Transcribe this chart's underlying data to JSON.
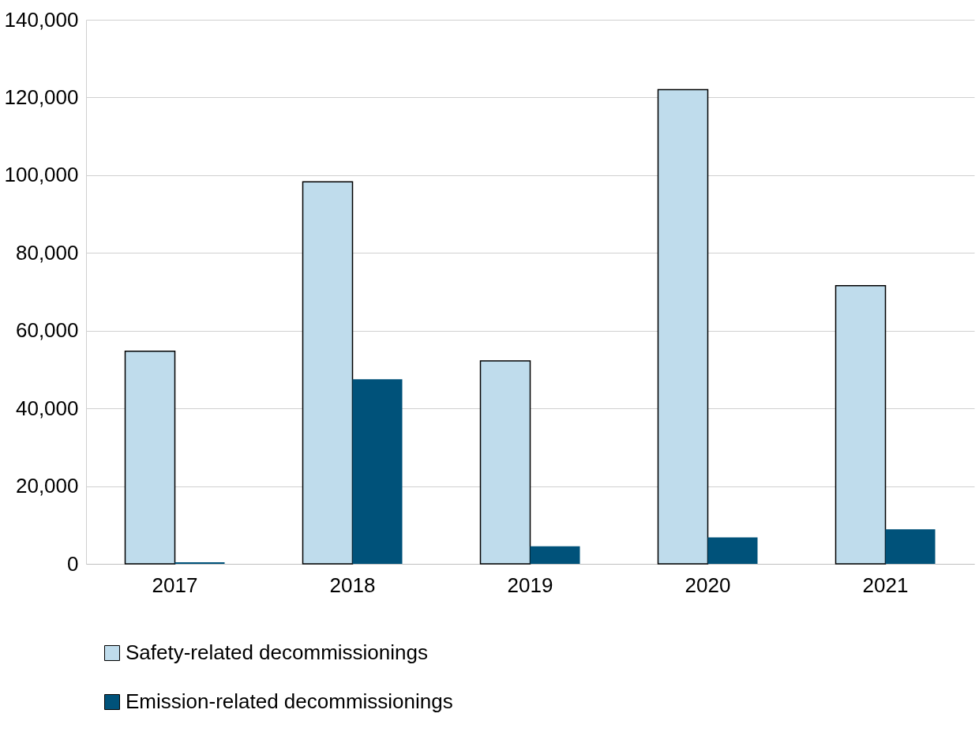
{
  "chart_data": {
    "type": "bar",
    "categories": [
      "2017",
      "2018",
      "2019",
      "2020",
      "2021"
    ],
    "series": [
      {
        "name": "Safety-related decommissionings",
        "color": "#bfdcec",
        "values": [
          54700,
          98300,
          52200,
          122000,
          71600
        ]
      },
      {
        "name": "Emission-related decommissionings",
        "color": "#00527a",
        "values": [
          400,
          47500,
          4500,
          6800,
          8900
        ]
      }
    ],
    "ylim": [
      0,
      140000
    ],
    "yticks": [
      {
        "value": 0,
        "label": "0"
      },
      {
        "value": 20000,
        "label": "20,000"
      },
      {
        "value": 40000,
        "label": "40,000"
      },
      {
        "value": 60000,
        "label": "60,000"
      },
      {
        "value": 80000,
        "label": "80,000"
      },
      {
        "value": 100000,
        "label": "100,000"
      },
      {
        "value": 120000,
        "label": "120,000"
      },
      {
        "value": 140000,
        "label": "140,000"
      }
    ],
    "grid": "y",
    "legend": "bottom"
  }
}
